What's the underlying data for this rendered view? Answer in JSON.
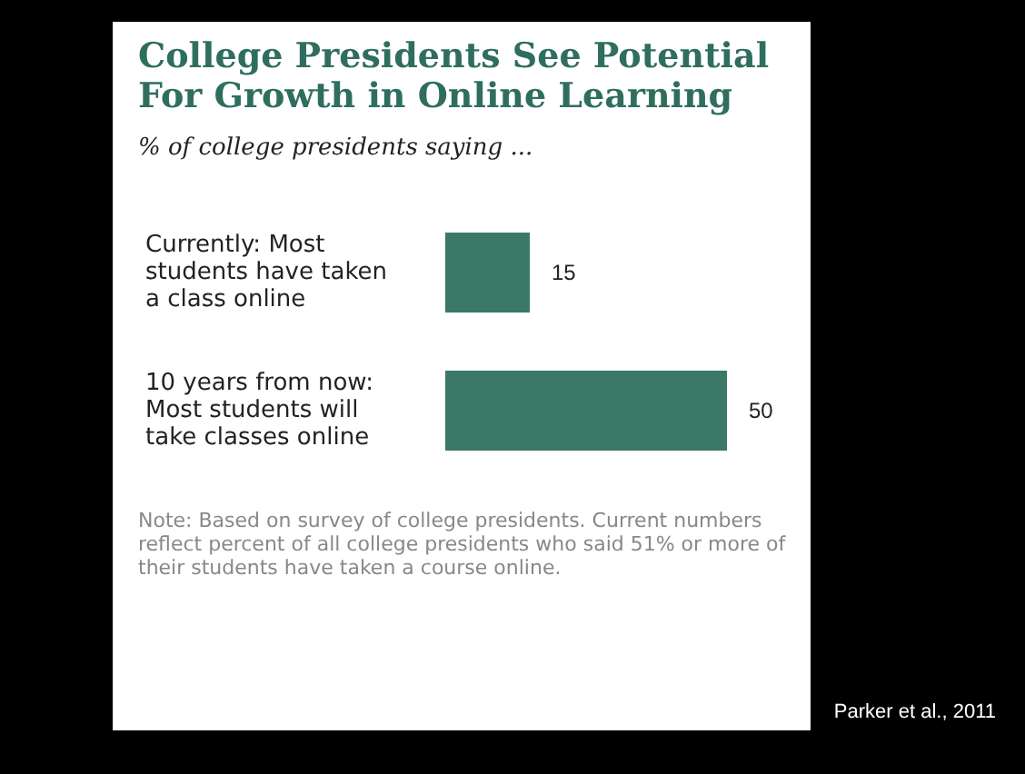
{
  "chart_data": {
    "type": "bar",
    "orientation": "horizontal",
    "title": "College Presidents See Potential For Growth in Online Learning",
    "subtitle": "% of college presidents saying ...",
    "categories": [
      "Currently: Most students have taken a class online",
      "10 years from now: Most students will take classes online"
    ],
    "values": [
      15,
      50
    ],
    "color": "#3b7867",
    "data_labels": true,
    "annotations": [
      "Note: Based on survey of college presidents. Current numbers reflect percent of all college presidents who said 51% or more of their students have taken a course online.",
      "Parker et al., 2011"
    ]
  }
}
